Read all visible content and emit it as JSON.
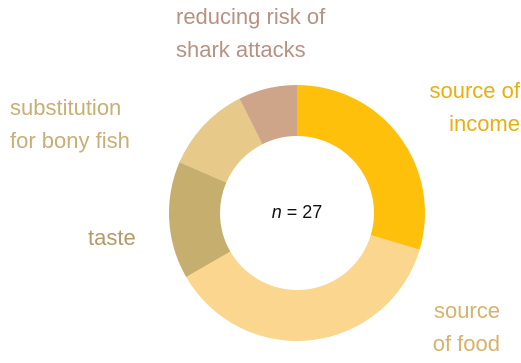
{
  "chart_data": {
    "type": "pie",
    "variant": "donut",
    "center_label": "n = 27",
    "slices": [
      {
        "name": "source of income",
        "value": 8,
        "color": "#FFC00C",
        "label_lines": [
          "source of",
          "income"
        ]
      },
      {
        "name": "source of food",
        "value": 10,
        "color": "#FAD68E",
        "label_lines": [
          "source",
          "of food"
        ]
      },
      {
        "name": "taste",
        "value": 4,
        "color": "#C6AE6E",
        "label_lines": [
          "taste"
        ]
      },
      {
        "name": "substitution for bony fish",
        "value": 3,
        "color": "#E7C98A",
        "label_lines": [
          "substitution",
          "for bony fish"
        ]
      },
      {
        "name": "reducing risk of shark attacks",
        "value": 2,
        "color": "#CFA58A",
        "label_lines": [
          "reducing risk of",
          "shark attacks"
        ]
      }
    ],
    "label_colors": {
      "source of income": "#E8AE12",
      "source of food": "#D8B26A",
      "taste": "#B39A66",
      "substitution for bony fish": "#C9AE76",
      "reducing risk of shark attacks": "#B79283"
    }
  }
}
